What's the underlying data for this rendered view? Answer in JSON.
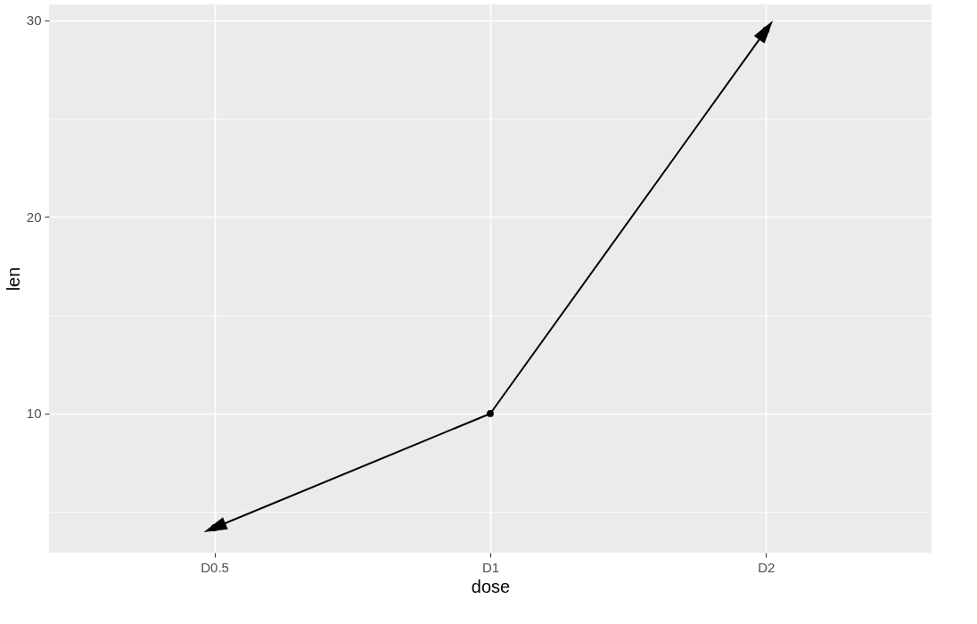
{
  "chart_data": {
    "type": "line",
    "xlabel": "dose",
    "ylabel": "len",
    "categories": [
      "D0.5",
      "D1",
      "D2"
    ],
    "series": [
      {
        "color": "#000000",
        "values": [
          4.2,
          10.0,
          29.5
        ]
      }
    ],
    "ylim": [
      2.93,
      30.8
    ],
    "yticks": [
      10,
      20,
      30
    ],
    "grid": true,
    "marker": "circle",
    "line_style": "solid"
  }
}
